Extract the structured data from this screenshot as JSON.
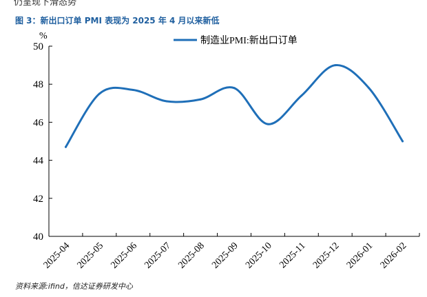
{
  "page_top_text": "仍呈现下滑态势",
  "figure_title": "图 3：新出口订单 PMI 表现为 2025 年 4 月以来新低",
  "source_text": "资料来源:ifind，信达证券研发中心",
  "chart_data": {
    "type": "line",
    "title": "",
    "xlabel": "",
    "ylabel": "%",
    "ylim": [
      40,
      50
    ],
    "yticks": [
      40,
      42,
      44,
      46,
      48,
      50
    ],
    "categories": [
      "2025-04",
      "2025-05",
      "2025-06",
      "2025-07",
      "2025-08",
      "2025-09",
      "2025-10",
      "2025-11",
      "2025-12",
      "2026-01",
      "2026-02"
    ],
    "grid": false,
    "legend_position": "top-right",
    "series": [
      {
        "name": "制造业PMI:新出口订单",
        "color": "#1f6fb8",
        "values": [
          44.7,
          47.5,
          47.7,
          47.1,
          47.2,
          47.8,
          45.9,
          47.4,
          49.0,
          47.8,
          45.0
        ]
      }
    ]
  }
}
